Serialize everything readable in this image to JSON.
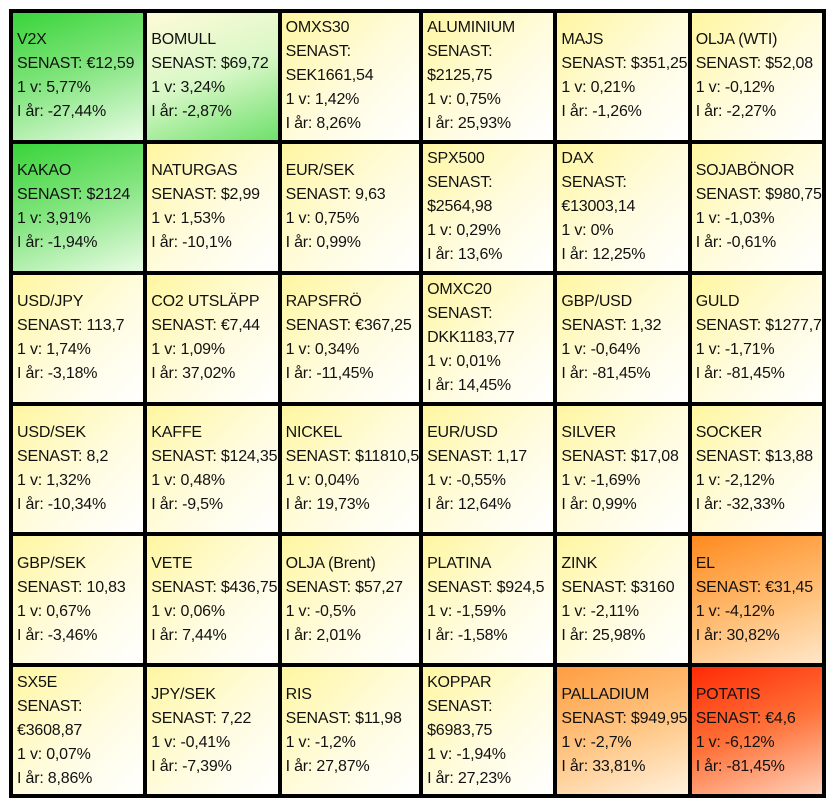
{
  "tiles": [
    {
      "name": "V2X",
      "senast": "SENAST: €12,59",
      "v1": "1 v: 5,77%",
      "ar": "I år: -27,44%",
      "tone": "t-green-strong"
    },
    {
      "name": "BOMULL",
      "senast": "SENAST: $69,72",
      "v1": "1 v: 3,24%",
      "ar": "I år: -2,87%",
      "tone": "t-green-light"
    },
    {
      "name": "OMXS30",
      "senast": "SENAST:",
      "senast2": "SEK1661,54",
      "v1": "1 v: 1,42%",
      "ar": "I år: 8,26%",
      "tone": "t-neutral"
    },
    {
      "name": "ALUMINIUM",
      "senast": "SENAST:",
      "senast2": "$2125,75",
      "v1": "1 v: 0,75%",
      "ar": "I år: 25,93%",
      "tone": "t-neutral"
    },
    {
      "name": "MAJS",
      "senast": "SENAST: $351,25",
      "v1": "1 v: 0,21%",
      "ar": "I år: -1,26%",
      "tone": "t-neutral"
    },
    {
      "name": "OLJA (WTI)",
      "senast": "SENAST: $52,08",
      "v1": "1 v: -0,12%",
      "ar": "I år: -2,27%",
      "tone": "t-neutral"
    },
    {
      "name": "KAKAO",
      "senast": "SENAST: $2124",
      "v1": "1 v: 3,91%",
      "ar": "I år: -1,94%",
      "tone": "t-green-strong"
    },
    {
      "name": "NATURGAS",
      "senast": "SENAST: $2,99",
      "v1": "1 v: 1,53%",
      "ar": "I år: -10,1%",
      "tone": "t-neutral"
    },
    {
      "name": "EUR/SEK",
      "senast": "SENAST: 9,63",
      "v1": "1 v: 0,75%",
      "ar": "I år: 0,99%",
      "tone": "t-neutral"
    },
    {
      "name": "SPX500",
      "senast": "SENAST:",
      "senast2": "$2564,98",
      "v1": "1 v: 0,29%",
      "ar": "I år: 13,6%",
      "tone": "t-neutral"
    },
    {
      "name": "DAX",
      "senast": "SENAST:",
      "senast2": "€13003,14",
      "v1": "1 v: 0%",
      "ar": "I år: 12,25%",
      "tone": "t-neutral"
    },
    {
      "name": "SOJABÖNOR",
      "senast": "SENAST: $980,75",
      "v1": "1 v: -1,03%",
      "ar": "I år: -0,61%",
      "tone": "t-neutral"
    },
    {
      "name": "USD/JPY",
      "senast": "SENAST: 113,7",
      "v1": "1 v: 1,74%",
      "ar": "I år: -3,18%",
      "tone": "t-neutral"
    },
    {
      "name": "CO2 UTSLÄPP",
      "senast": "SENAST: €7,44",
      "v1": "1 v: 1,09%",
      "ar": "I år: 37,02%",
      "tone": "t-neutral"
    },
    {
      "name": "RAPSFRÖ",
      "senast": "SENAST: €367,25",
      "v1": "1 v: 0,34%",
      "ar": "I år: -11,45%",
      "tone": "t-neutral"
    },
    {
      "name": "OMXC20",
      "senast": "SENAST:",
      "senast2": "DKK1183,77",
      "v1": "1 v: 0,01%",
      "ar": "I år: 14,45%",
      "tone": "t-neutral"
    },
    {
      "name": "GBP/USD",
      "senast": "SENAST: 1,32",
      "v1": "1 v: -0,64%",
      "ar": "I år: -81,45%",
      "tone": "t-neutral"
    },
    {
      "name": "GULD",
      "senast": "SENAST: $1277,7",
      "v1": "1 v: -1,71%",
      "ar": "I år: -81,45%",
      "tone": "t-neutral"
    },
    {
      "name": "USD/SEK",
      "senast": "SENAST: 8,2",
      "v1": "1 v: 1,32%",
      "ar": "I år: -10,34%",
      "tone": "t-neutral"
    },
    {
      "name": "KAFFE",
      "senast": "SENAST: $124,35",
      "v1": "1 v: 0,48%",
      "ar": "I år: -9,5%",
      "tone": "t-neutral"
    },
    {
      "name": "NICKEL",
      "senast": "SENAST: $11810,5",
      "v1": "1 v: 0,04%",
      "ar": "I år: 19,73%",
      "tone": "t-neutral"
    },
    {
      "name": "EUR/USD",
      "senast": "SENAST: 1,17",
      "v1": "1 v: -0,55%",
      "ar": "I år: 12,64%",
      "tone": "t-neutral"
    },
    {
      "name": "SILVER",
      "senast": "SENAST: $17,08",
      "v1": "1 v: -1,69%",
      "ar": "I år: 0,99%",
      "tone": "t-neutral"
    },
    {
      "name": "SOCKER",
      "senast": "SENAST: $13,88",
      "v1": "1 v: -2,12%",
      "ar": "I år: -32,33%",
      "tone": "t-neutral"
    },
    {
      "name": "GBP/SEK",
      "senast": "SENAST: 10,83",
      "v1": "1 v: 0,67%",
      "ar": "I år: -3,46%",
      "tone": "t-neutral"
    },
    {
      "name": "VETE",
      "senast": "SENAST: $436,75",
      "v1": "1 v: 0,06%",
      "ar": "I år: 7,44%",
      "tone": "t-neutral"
    },
    {
      "name": "OLJA (Brent)",
      "senast": "SENAST: $57,27",
      "v1": "1 v: -0,5%",
      "ar": "I år: 2,01%",
      "tone": "t-neutral"
    },
    {
      "name": "PLATINA",
      "senast": "SENAST: $924,5",
      "v1": "1 v: -1,59%",
      "ar": "I år: -1,58%",
      "tone": "t-neutral"
    },
    {
      "name": "ZINK",
      "senast": "SENAST: $3160",
      "v1": "1 v: -2,11%",
      "ar": "I år: 25,98%",
      "tone": "t-neutral"
    },
    {
      "name": "EL",
      "senast": "SENAST: €31,45",
      "v1": "1 v: -4,12%",
      "ar": "I år: 30,82%",
      "tone": "t-orange"
    },
    {
      "name": "SX5E",
      "senast": "SENAST:",
      "senast2": "€3608,87",
      "v1": "1 v: 0,07%",
      "ar": "I år: 8,86%",
      "tone": "t-neutral"
    },
    {
      "name": "JPY/SEK",
      "senast": "SENAST: 7,22",
      "v1": "1 v: -0,41%",
      "ar": "I år: -7,39%",
      "tone": "t-neutral"
    },
    {
      "name": "RIS",
      "senast": "SENAST: $11,98",
      "v1": "1 v: -1,2%",
      "ar": "I år: 27,87%",
      "tone": "t-neutral"
    },
    {
      "name": "KOPPAR",
      "senast": "SENAST:",
      "senast2": "$6983,75",
      "v1": "1 v: -1,94%",
      "ar": "I år: 27,23%",
      "tone": "t-neutral"
    },
    {
      "name": "PALLADIUM",
      "senast": "SENAST: $949,95",
      "v1": "1 v: -2,7%",
      "ar": "I år: 33,81%",
      "tone": "t-orange-light"
    },
    {
      "name": "POTATIS",
      "senast": "SENAST: €4,6",
      "v1": "1 v: -6,12%",
      "ar": "I år: -81,45%",
      "tone": "t-red"
    }
  ]
}
